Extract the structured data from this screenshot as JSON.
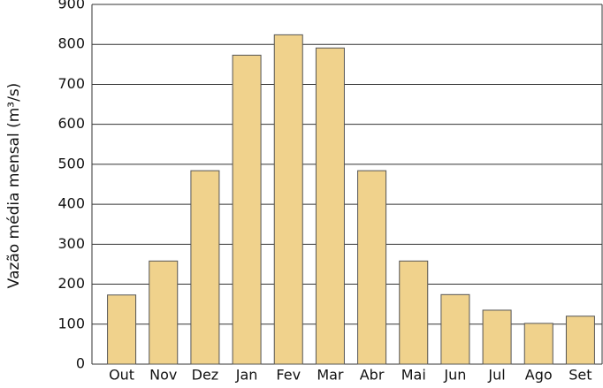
{
  "chart_data": {
    "type": "bar",
    "y_label": "Vazão média mensal (m³/s)",
    "categories": [
      "Out",
      "Nov",
      "Dez",
      "Jan",
      "Fev",
      "Mar",
      "Abr",
      "Mai",
      "Jun",
      "Jul",
      "Ago",
      "Set"
    ],
    "values": [
      173,
      258,
      484,
      773,
      824,
      791,
      484,
      258,
      174,
      135,
      102,
      120
    ],
    "color": "#f0d28c",
    "ylim": [
      0,
      900
    ],
    "yticks": [
      0,
      100,
      200,
      300,
      400,
      500,
      600,
      700,
      800,
      900
    ],
    "grid": true
  }
}
